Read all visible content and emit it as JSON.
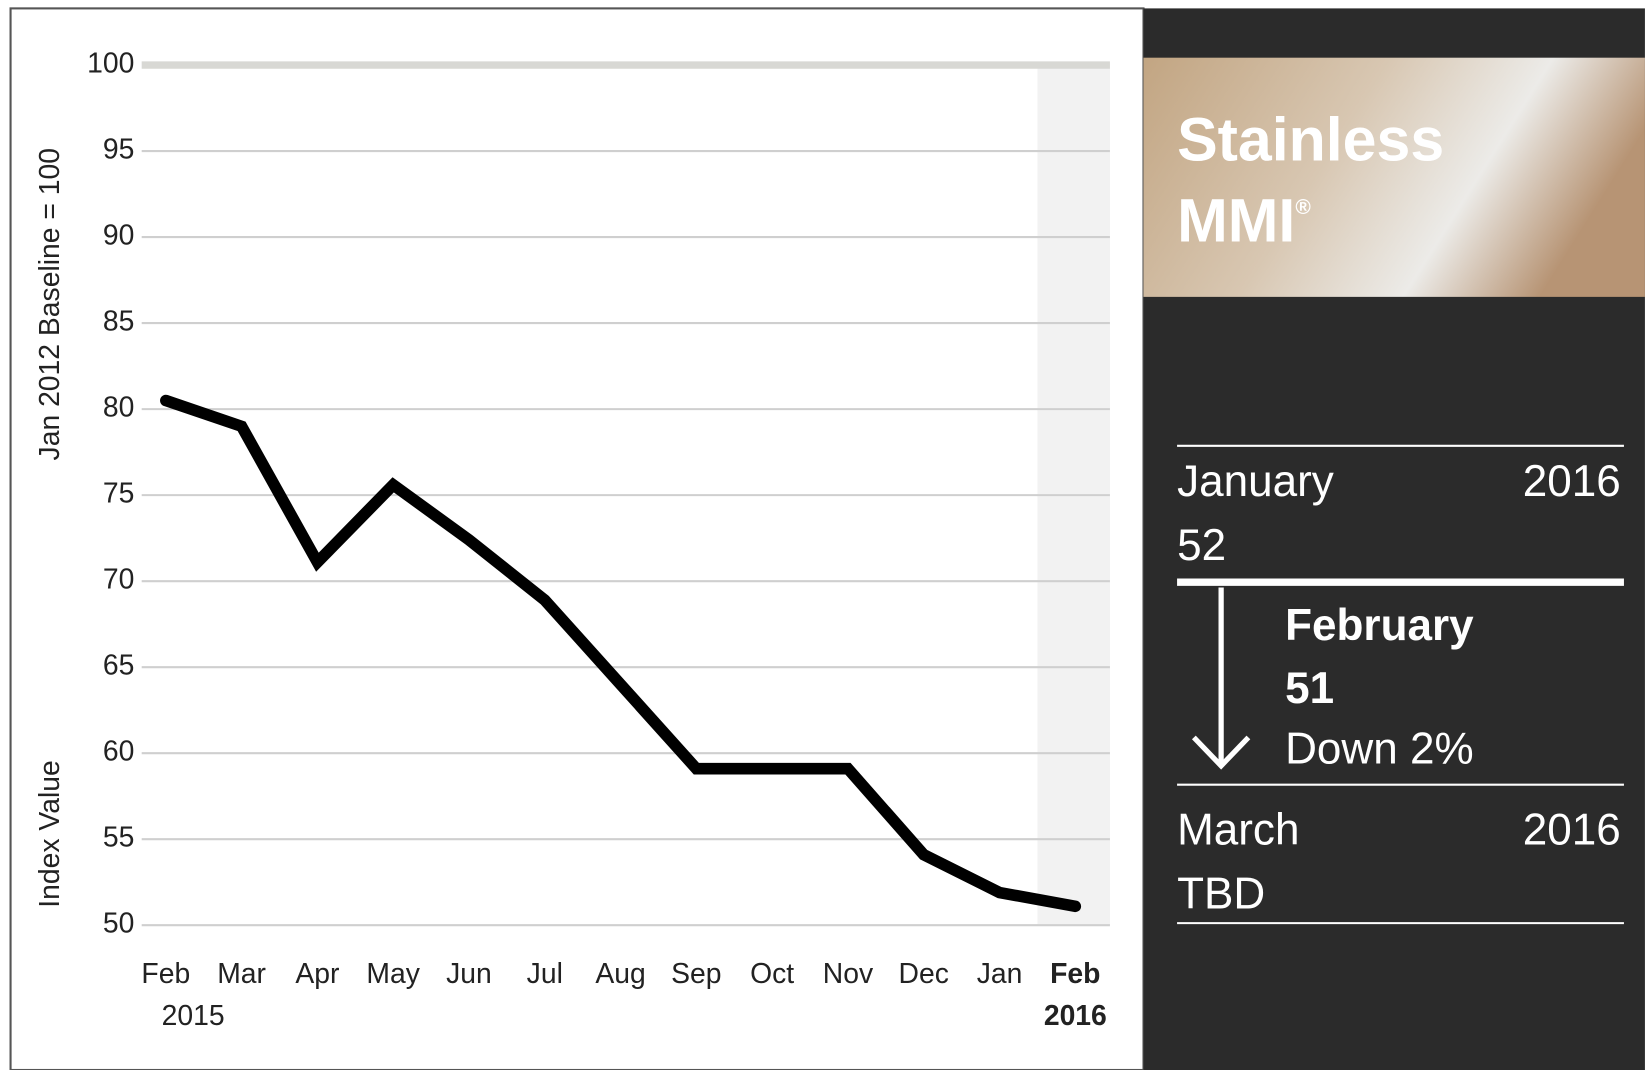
{
  "chart_data": {
    "type": "line",
    "y_axis_labels": [
      "Jan 2012 Baseline = 100",
      "Index Value"
    ],
    "categories": [
      "Feb",
      "Mar",
      "Apr",
      "May",
      "Jun",
      "Jul",
      "Aug",
      "Sep",
      "Oct",
      "Nov",
      "Dec",
      "Jan",
      "Feb"
    ],
    "category_years": [
      "2015",
      null,
      null,
      null,
      null,
      null,
      null,
      null,
      null,
      null,
      null,
      null,
      "2016"
    ],
    "series": [
      {
        "name": "Stainless MMI",
        "color": "#000000",
        "values": [
          80.5,
          79.0,
          71.1,
          75.6,
          72.4,
          68.9,
          64.0,
          59.1,
          59.1,
          59.1,
          54.1,
          51.9,
          51.1
        ]
      }
    ],
    "ylim": [
      50,
      100
    ],
    "yticks": [
      50,
      55,
      60,
      65,
      70,
      75,
      80,
      85,
      90,
      95,
      100
    ],
    "grid": true,
    "highlight_last": true
  },
  "panel": {
    "title": "Stainless",
    "subtitle": "MMI",
    "subtitle_mark": "®",
    "previous": {
      "month": "January",
      "year": "2016",
      "value": 52
    },
    "current": {
      "month": "February",
      "value": 51,
      "change": "Down 2%"
    },
    "next": {
      "month": "March",
      "year": "2016",
      "value": "TBD"
    }
  }
}
